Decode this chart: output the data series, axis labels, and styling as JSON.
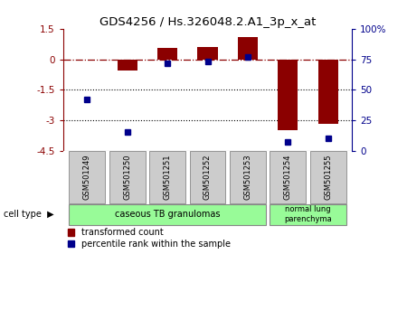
{
  "title": "GDS4256 / Hs.326048.2.A1_3p_x_at",
  "samples": [
    "GSM501249",
    "GSM501250",
    "GSM501251",
    "GSM501252",
    "GSM501253",
    "GSM501254",
    "GSM501255"
  ],
  "red_bars": [
    0.0,
    -0.55,
    0.55,
    0.6,
    1.1,
    -3.5,
    -3.2
  ],
  "blue_pct": [
    42,
    15,
    72,
    73,
    77,
    7,
    10
  ],
  "red_ylim": [
    -4.5,
    1.5
  ],
  "red_yticks": [
    1.5,
    0,
    -1.5,
    -3,
    -4.5
  ],
  "red_ytick_labels": [
    "1.5",
    "0",
    "-1.5",
    "-3",
    "-4.5"
  ],
  "blue_ylim": [
    0,
    100
  ],
  "blue_yticks": [
    0,
    25,
    50,
    75,
    100
  ],
  "blue_ytick_labels": [
    "0",
    "25",
    "50",
    "75",
    "100%"
  ],
  "zero_line": 0,
  "hlines": [
    -1.5,
    -3
  ],
  "group_colors": [
    "#98FB98",
    "#98FB98"
  ],
  "bar_color": "#8B0000",
  "dot_color": "#00008B",
  "bg_color": "#ffffff",
  "sample_box_color": "#cccccc",
  "sample_box_edgecolor": "#888888"
}
